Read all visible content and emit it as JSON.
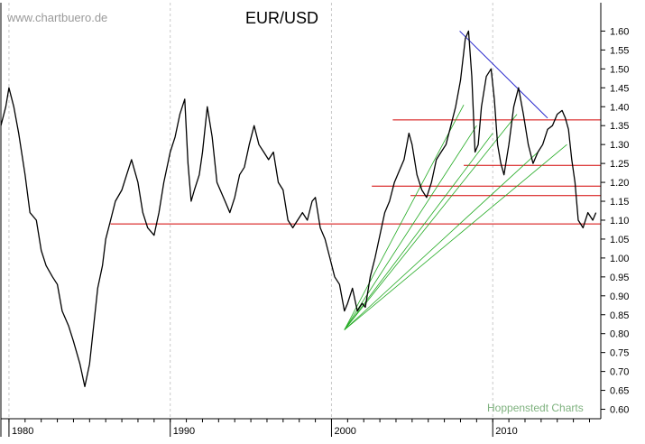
{
  "watermark": "www.chartbuero.de",
  "credit": "Hoppenstedt Charts",
  "chart_data": {
    "type": "line",
    "title": "EUR/USD",
    "xlabel": "",
    "ylabel": "",
    "xlim": [
      1979.5,
      2016.7
    ],
    "ylim": [
      0.575,
      1.675
    ],
    "y_axis_side": "right",
    "grid": "vertical dashed at decades",
    "x_ticks": [
      {
        "value": 1980,
        "label": "1980"
      },
      {
        "value": 1990,
        "label": "1990"
      },
      {
        "value": 2000,
        "label": "2000"
      },
      {
        "value": 2010,
        "label": "2010"
      }
    ],
    "y_ticks": [
      "0.60",
      "0.65",
      "0.70",
      "0.75",
      "0.80",
      "0.85",
      "0.90",
      "0.95",
      "1.00",
      "1.05",
      "1.10",
      "1.15",
      "1.20",
      "1.25",
      "1.30",
      "1.35",
      "1.40",
      "1.45",
      "1.50",
      "1.55",
      "1.60"
    ],
    "series": [
      {
        "color": "#000000",
        "x": [
          1979.5,
          1979.8,
          1980.0,
          1980.3,
          1980.6,
          1981.0,
          1981.3,
          1981.7,
          1982.0,
          1982.3,
          1982.7,
          1983.0,
          1983.3,
          1983.7,
          1984.0,
          1984.4,
          1984.7,
          1985.0,
          1985.2,
          1985.5,
          1985.8,
          1986.0,
          1986.3,
          1986.6,
          1987.0,
          1987.3,
          1987.6,
          1988.0,
          1988.3,
          1988.6,
          1989.0,
          1989.3,
          1989.6,
          1990.0,
          1990.3,
          1990.6,
          1990.9,
          1991.1,
          1991.3,
          1991.5,
          1991.8,
          1992.0,
          1992.3,
          1992.6,
          1992.9,
          1993.1,
          1993.4,
          1993.7,
          1994.0,
          1994.3,
          1994.6,
          1994.9,
          1995.2,
          1995.5,
          1995.8,
          1996.1,
          1996.4,
          1996.7,
          1997.0,
          1997.3,
          1997.6,
          1997.9,
          1998.2,
          1998.5,
          1998.8,
          1999.0,
          1999.3,
          1999.6,
          1999.9,
          2000.2,
          2000.5,
          2000.8,
          2001.0,
          2001.3,
          2001.6,
          2001.9,
          2002.1,
          2002.4,
          2002.7,
          2003.0,
          2003.3,
          2003.6,
          2003.9,
          2004.2,
          2004.5,
          2004.8,
          2005.0,
          2005.3,
          2005.6,
          2005.9,
          2006.2,
          2006.5,
          2006.8,
          2007.1,
          2007.4,
          2007.7,
          2008.0,
          2008.3,
          2008.5,
          2008.7,
          2008.9,
          2009.1,
          2009.3,
          2009.6,
          2009.9,
          2010.1,
          2010.3,
          2010.5,
          2010.7,
          2011.0,
          2011.3,
          2011.6,
          2011.9,
          2012.2,
          2012.5,
          2012.8,
          2013.1,
          2013.4,
          2013.7,
          2014.0,
          2014.3,
          2014.5,
          2014.7,
          2014.9,
          2015.1,
          2015.3,
          2015.6,
          2015.9,
          2016.2,
          2016.4
        ],
        "y": [
          1.35,
          1.4,
          1.45,
          1.4,
          1.33,
          1.22,
          1.12,
          1.1,
          1.02,
          0.98,
          0.95,
          0.93,
          0.86,
          0.82,
          0.78,
          0.72,
          0.66,
          0.72,
          0.8,
          0.92,
          0.98,
          1.05,
          1.1,
          1.15,
          1.18,
          1.22,
          1.26,
          1.2,
          1.12,
          1.08,
          1.06,
          1.12,
          1.2,
          1.28,
          1.32,
          1.38,
          1.42,
          1.25,
          1.15,
          1.18,
          1.22,
          1.28,
          1.4,
          1.32,
          1.2,
          1.18,
          1.15,
          1.12,
          1.16,
          1.22,
          1.24,
          1.3,
          1.35,
          1.3,
          1.28,
          1.26,
          1.28,
          1.2,
          1.18,
          1.1,
          1.08,
          1.1,
          1.12,
          1.1,
          1.15,
          1.16,
          1.08,
          1.05,
          1.0,
          0.95,
          0.93,
          0.86,
          0.88,
          0.92,
          0.86,
          0.88,
          0.87,
          0.95,
          1.0,
          1.06,
          1.12,
          1.15,
          1.2,
          1.23,
          1.26,
          1.33,
          1.3,
          1.22,
          1.18,
          1.16,
          1.2,
          1.26,
          1.28,
          1.3,
          1.35,
          1.4,
          1.47,
          1.58,
          1.6,
          1.48,
          1.28,
          1.3,
          1.4,
          1.48,
          1.5,
          1.42,
          1.3,
          1.25,
          1.22,
          1.3,
          1.4,
          1.45,
          1.38,
          1.3,
          1.25,
          1.28,
          1.3,
          1.34,
          1.35,
          1.38,
          1.39,
          1.37,
          1.34,
          1.26,
          1.2,
          1.1,
          1.08,
          1.12,
          1.1,
          1.12
        ]
      }
    ],
    "annotations": {
      "red_horizontal_lines": [
        {
          "y": 1.365,
          "x_start": 2003.8,
          "x_end": 2016.7
        },
        {
          "y": 1.245,
          "x_start": 2008.2,
          "x_end": 2016.7
        },
        {
          "y": 1.19,
          "x_start": 2002.5,
          "x_end": 2016.7
        },
        {
          "y": 1.165,
          "x_start": 2004.9,
          "x_end": 2016.7
        },
        {
          "y": 1.09,
          "x_start": 1986.3,
          "x_end": 2016.7
        }
      ],
      "blue_trendline": {
        "from": [
          2007.95,
          1.6
        ],
        "to": [
          2013.4,
          1.37
        ]
      },
      "green_fan_lines": [
        {
          "from": [
            2000.8,
            0.81
          ],
          "to": [
            2008.2,
            1.405
          ]
        },
        {
          "from": [
            2000.8,
            0.81
          ],
          "to": [
            2009.0,
            1.35
          ]
        },
        {
          "from": [
            2000.8,
            0.81
          ],
          "to": [
            2010.0,
            1.33
          ]
        },
        {
          "from": [
            2000.8,
            0.81
          ],
          "to": [
            2011.5,
            1.38
          ]
        },
        {
          "from": [
            2000.8,
            0.81
          ],
          "to": [
            2012.8,
            1.28
          ]
        },
        {
          "from": [
            2000.8,
            0.81
          ],
          "to": [
            2014.6,
            1.3
          ]
        }
      ]
    }
  }
}
